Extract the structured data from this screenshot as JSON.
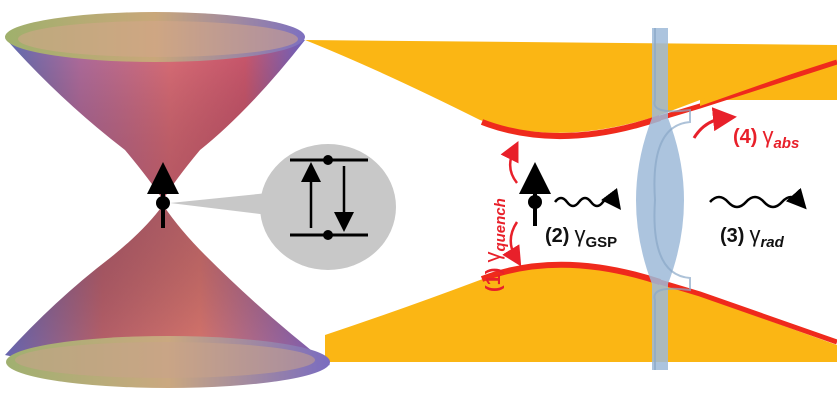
{
  "labels": {
    "quench": {
      "num": "(1)",
      "sym": "γ",
      "sub": "quench",
      "color": "#e8202a"
    },
    "gsp": {
      "num": "(2)",
      "sym": "γ",
      "sub": "GSP",
      "color": "#111111"
    },
    "rad": {
      "num": "(3)",
      "sym": "γ",
      "sub": "rad",
      "color": "#111111"
    },
    "abs": {
      "num": "(4)",
      "sym": "γ",
      "sub": "abs",
      "color": "#e8202a"
    }
  },
  "colors": {
    "waveguide_fill": "#fbb614",
    "waveguide_edge": "#ef2a1c",
    "mode_profile": "#9dbad8",
    "inset_circle": "#c8c8c8",
    "arrow_black": "#000000",
    "arrow_red": "#e8202a"
  },
  "icons": [
    "emitter-dot-icon",
    "spin-arrow-icon",
    "two-level-system-icon",
    "wavy-photon-icon"
  ]
}
